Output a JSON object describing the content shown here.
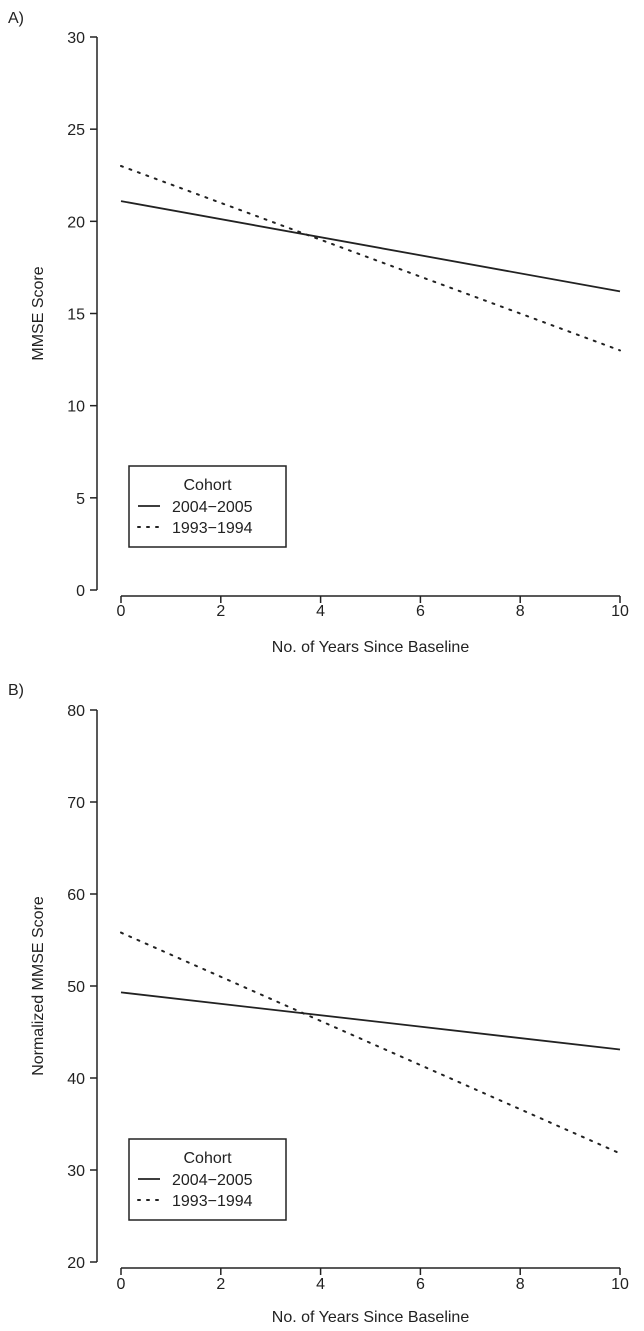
{
  "chart_data": [
    {
      "type": "line",
      "panel_label": "A)",
      "xlabel": "No. of Years Since Baseline",
      "ylabel": "MMSE Score",
      "xlim": [
        0,
        10
      ],
      "ylim": [
        0,
        30
      ],
      "xticks": [
        0,
        2,
        4,
        6,
        8,
        10
      ],
      "yticks": [
        0,
        5,
        10,
        15,
        20,
        25,
        30
      ],
      "grid": false,
      "legend": {
        "title": "Cohort",
        "placement": "bottom-left"
      },
      "series": [
        {
          "name": "2004−2005",
          "style": "solid",
          "x": [
            0,
            10
          ],
          "y": [
            21.1,
            16.2
          ]
        },
        {
          "name": "1993−1994",
          "style": "dotted",
          "x": [
            0,
            10
          ],
          "y": [
            23.0,
            13.0
          ]
        }
      ]
    },
    {
      "type": "line",
      "panel_label": "B)",
      "xlabel": "No. of Years Since Baseline",
      "ylabel": "Normalized MMSE Score",
      "xlim": [
        0,
        10
      ],
      "ylim": [
        20,
        80
      ],
      "xticks": [
        0,
        2,
        4,
        6,
        8,
        10
      ],
      "yticks": [
        20,
        30,
        40,
        50,
        60,
        70,
        80
      ],
      "grid": false,
      "legend": {
        "title": "Cohort",
        "placement": "bottom-left"
      },
      "series": [
        {
          "name": "2004−2005",
          "style": "solid",
          "x": [
            0,
            10
          ],
          "y": [
            49.3,
            43.1
          ]
        },
        {
          "name": "1993−1994",
          "style": "dotted",
          "x": [
            0,
            10
          ],
          "y": [
            55.8,
            31.8
          ]
        }
      ]
    }
  ]
}
